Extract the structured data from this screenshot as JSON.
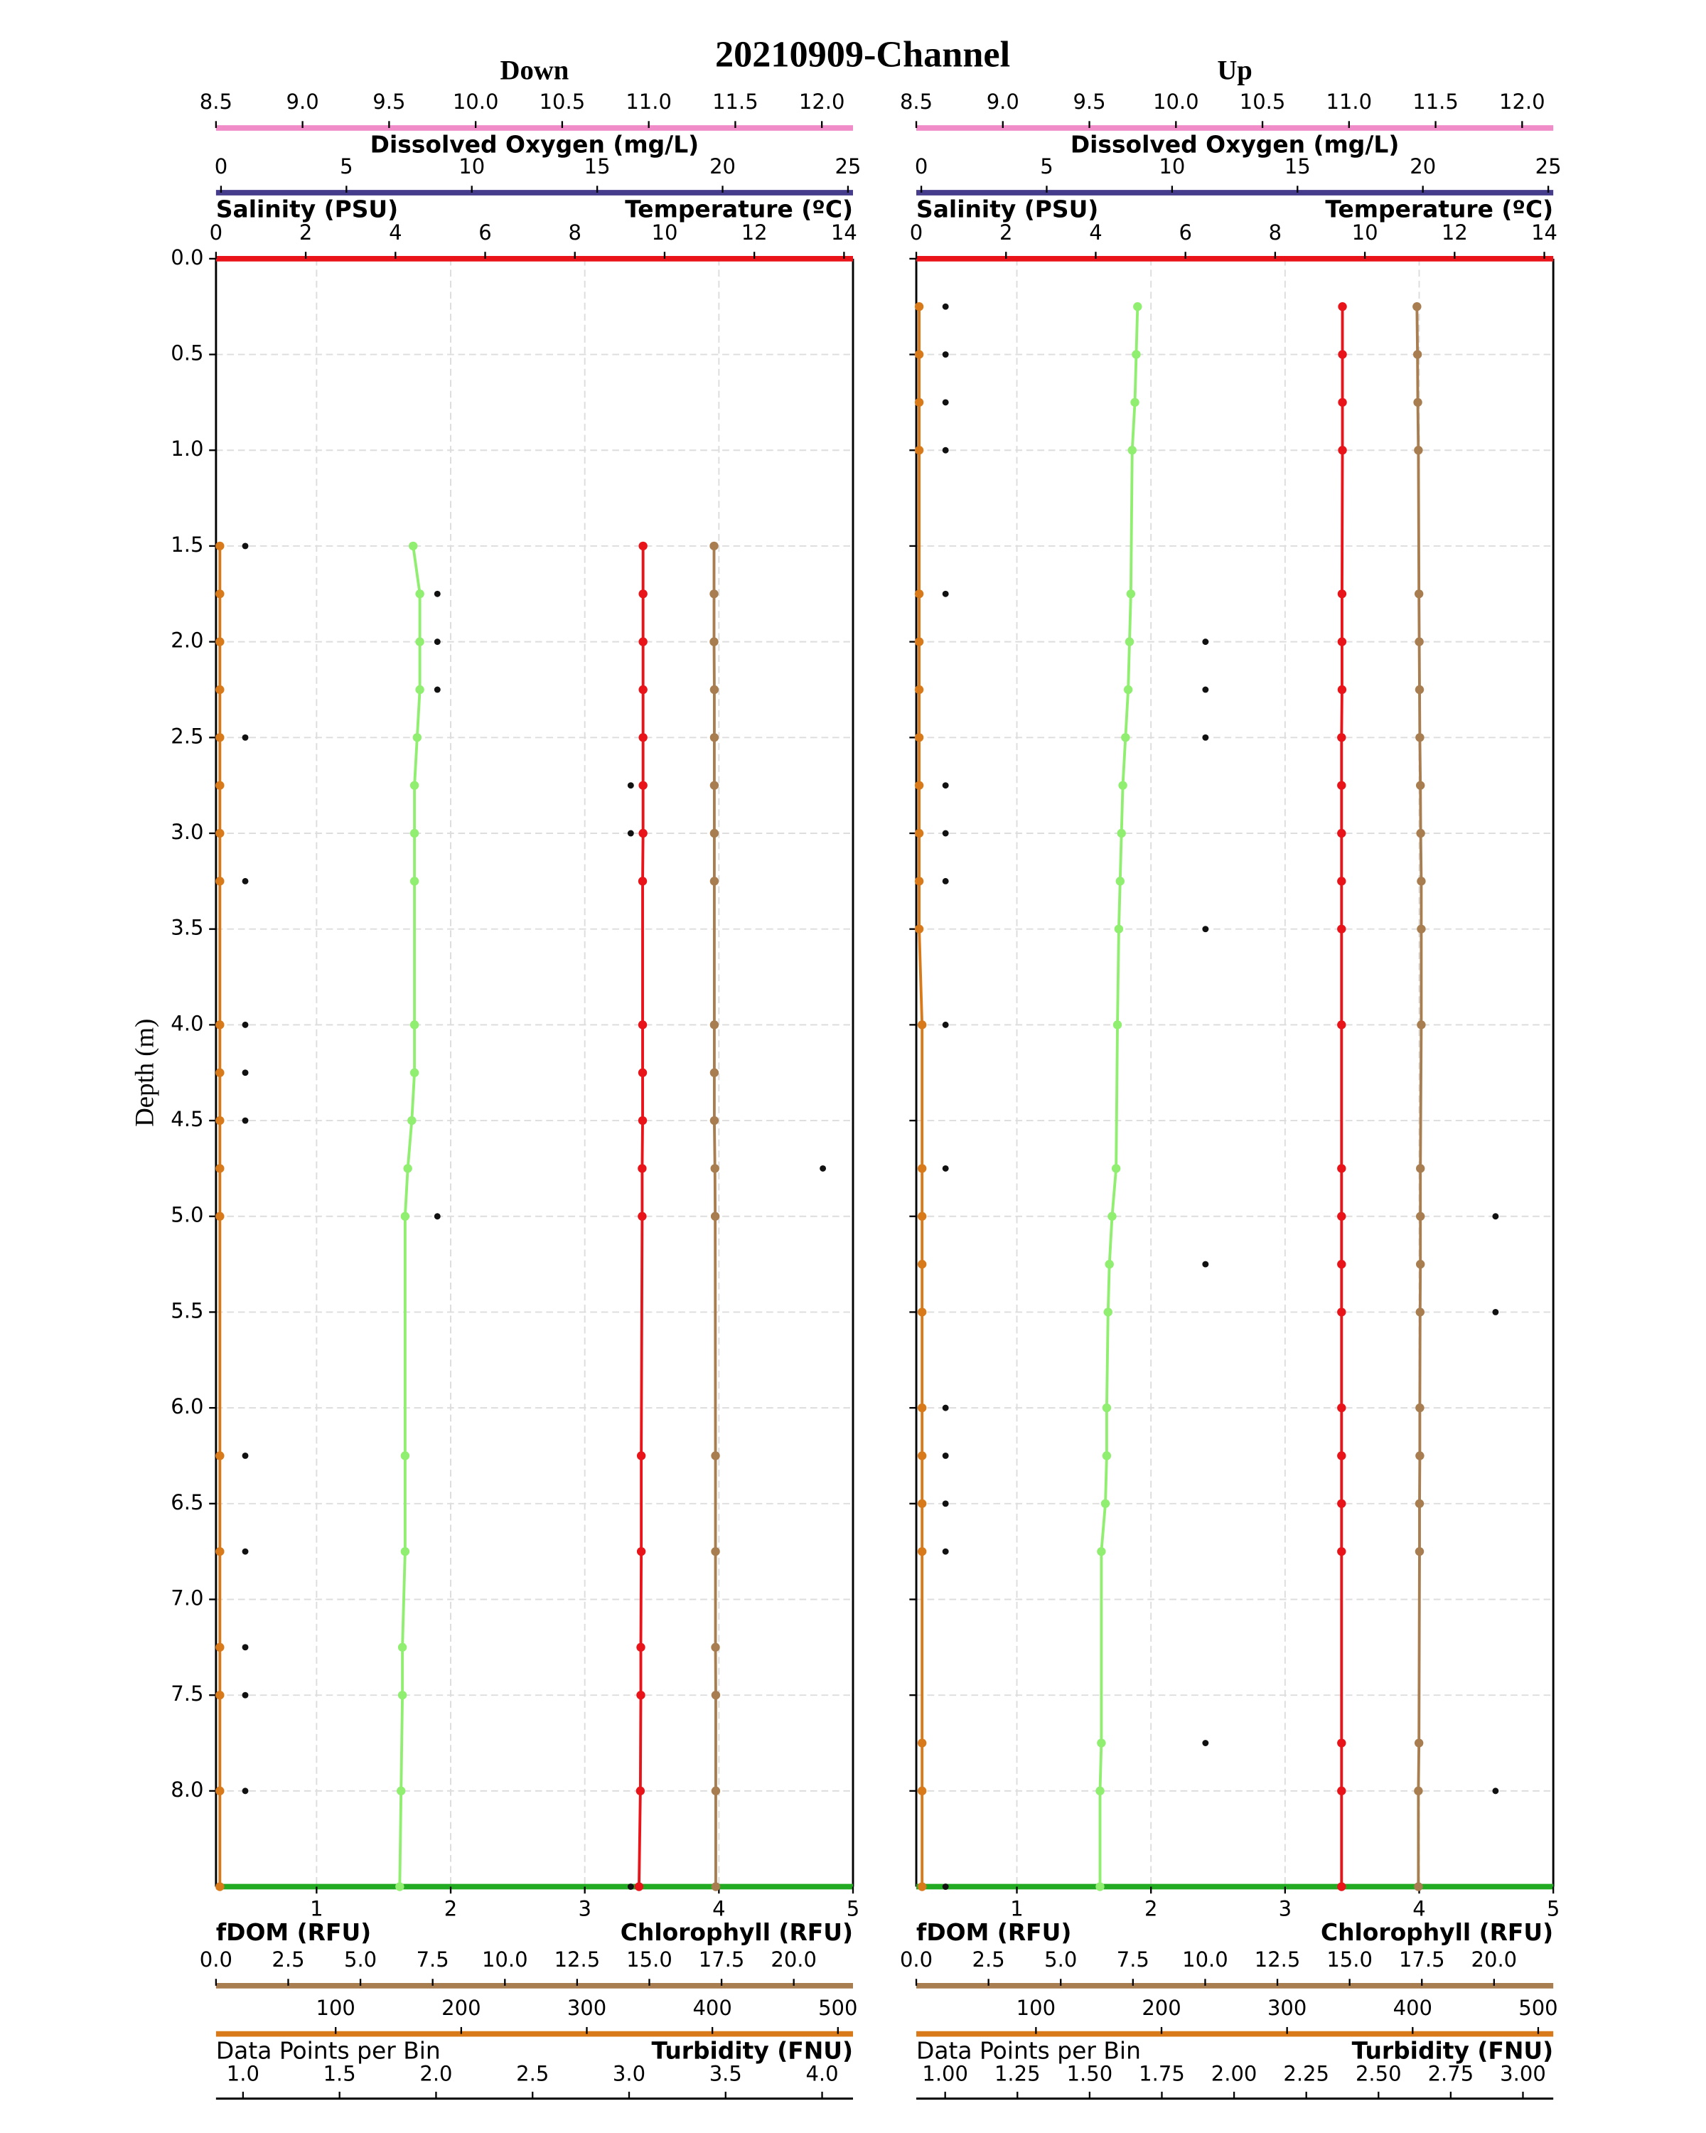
{
  "title": "20210909-Channel",
  "chart_data": [
    {
      "type": "line",
      "title": "Down",
      "ylabel": "Depth (m)",
      "ylim": [
        0,
        8.5
      ],
      "y_inverted": true,
      "show_yticklabels": true,
      "grid": true,
      "yticks": [
        {
          "value": 0,
          "label": "0.0"
        },
        0.5,
        {
          "value": 1,
          "label": "1.0"
        },
        1.5,
        {
          "value": 2,
          "label": "2.0"
        },
        2.5,
        {
          "value": 3,
          "label": "3.0"
        },
        3.5,
        {
          "value": 4,
          "label": "4.0"
        },
        4.5,
        {
          "value": 5,
          "label": "5.0"
        },
        5.5,
        {
          "value": 6,
          "label": "6.0"
        },
        6.5,
        {
          "value": 7,
          "label": "7.0"
        },
        7.5,
        {
          "value": 8,
          "label": "8.0"
        }
      ],
      "y": [
        1.5,
        1.75,
        2.0,
        2.25,
        2.5,
        2.75,
        3.0,
        3.25,
        4.0,
        4.25,
        4.5,
        4.75,
        5.0,
        6.25,
        6.75,
        7.25,
        7.5,
        8.0,
        8.5
      ],
      "axes": [
        {
          "label": "Dissolved Oxygen (mg/L)",
          "color": "#f08cc8",
          "line_color": "#f08cc8",
          "xlim": [
            8.5,
            12.18
          ],
          "xticks": [
            8.5,
            {
              "value": 9,
              "label": "9.0"
            },
            9.5,
            {
              "value": 10,
              "label": "10.0"
            },
            10.5,
            {
              "value": 11,
              "label": "11.0"
            },
            11.5,
            {
              "value": 12,
              "label": "12.0"
            }
          ]
        },
        {
          "label": "Salinity (PSU)",
          "color": "#463c8c",
          "line_color": "#463c8c",
          "xlim": [
            -0.2,
            25.2
          ],
          "xticks": [
            0,
            5,
            10,
            15,
            20,
            25
          ]
        },
        {
          "label": "Temperature (ºC)",
          "color": "#e8141a",
          "line_color": "#e8141a",
          "xlim": [
            0,
            14.2
          ],
          "xticks": [
            0,
            2,
            4,
            6,
            8,
            10,
            12,
            14
          ],
          "marker_color": "#e8141a",
          "linestyle": "-",
          "values": [
            9.52,
            9.52,
            9.52,
            9.52,
            9.52,
            9.52,
            9.52,
            9.51,
            9.51,
            9.51,
            9.51,
            9.5,
            9.5,
            9.48,
            9.48,
            9.47,
            9.47,
            9.46,
            9.43
          ]
        },
        {
          "label": "Chlorophyll (RFU)",
          "color": "#22aa22",
          "line_color": "#22aa22",
          "xlim": [
            0.25,
            5
          ],
          "xticks": [
            1,
            2,
            3,
            4,
            5
          ],
          "marker_color": "#90ee70",
          "linestyle": "-",
          "values": [
            1.72,
            1.77,
            1.77,
            1.77,
            1.75,
            1.73,
            1.73,
            1.73,
            1.73,
            1.73,
            1.71,
            1.68,
            1.66,
            1.66,
            1.66,
            1.64,
            1.64,
            1.63,
            1.62
          ]
        },
        {
          "label": "fDOM (RFU)",
          "color": "#a87d50",
          "line_color": "#a87d50",
          "xlim": [
            0,
            22.05
          ],
          "xticks": [
            {
              "value": 0,
              "label": "0.0"
            },
            2.5,
            {
              "value": 5,
              "label": "5.0"
            },
            7.5,
            {
              "value": 10,
              "label": "10.0"
            },
            12.5,
            {
              "value": 15,
              "label": "15.0"
            },
            17.5,
            {
              "value": 20,
              "label": "20.0"
            }
          ],
          "marker_color": "#a87d50",
          "linestyle": "-",
          "values": [
            17.24,
            17.24,
            17.24,
            17.25,
            17.25,
            17.25,
            17.25,
            17.25,
            17.25,
            17.25,
            17.25,
            17.27,
            17.28,
            17.29,
            17.29,
            17.29,
            17.3,
            17.3,
            17.3
          ]
        },
        {
          "label": "Data Points per Bin",
          "color": "#000000",
          "line_color": "#d97a1a",
          "xlim": [
            4.7,
            512
          ],
          "xticks": [
            100,
            200,
            300,
            400,
            500
          ],
          "marker_color": "#111111",
          "linestyle": "none",
          "values": [
            28,
            181,
            181,
            181,
            28,
            335,
            335,
            28,
            28,
            28,
            28,
            488,
            181,
            28,
            28,
            28,
            28,
            28,
            335
          ]
        },
        {
          "label": "Turbidity (FNU)",
          "color": "#d97a1a",
          "line_color": "#000000",
          "xlim": [
            0.86,
            4.16
          ],
          "xticks": [
            {
              "value": 1,
              "label": "1.0"
            },
            1.5,
            {
              "value": 2,
              "label": "2.0"
            },
            2.5,
            {
              "value": 3,
              "label": "3.0"
            },
            3.5,
            {
              "value": 4,
              "label": "4.0"
            }
          ],
          "marker_color": "#d97a1a",
          "linestyle": "-",
          "values": [
            0.88,
            0.88,
            0.88,
            0.88,
            0.88,
            0.88,
            0.88,
            0.88,
            0.88,
            0.88,
            0.88,
            0.88,
            0.88,
            0.88,
            0.88,
            0.88,
            0.88,
            0.88,
            0.88
          ]
        }
      ]
    },
    {
      "type": "line",
      "title": "Up",
      "ylim": [
        0,
        8.5
      ],
      "y_inverted": true,
      "show_yticklabels": false,
      "grid": true,
      "yticks": [
        0,
        0.5,
        1,
        1.5,
        2,
        2.5,
        3,
        3.5,
        4,
        4.5,
        5,
        5.5,
        6,
        6.5,
        7,
        7.5,
        8
      ],
      "y": [
        0.25,
        0.5,
        0.75,
        1.0,
        1.75,
        2.0,
        2.25,
        2.5,
        2.75,
        3.0,
        3.25,
        3.5,
        4.0,
        4.75,
        5.0,
        5.25,
        5.5,
        6.0,
        6.25,
        6.5,
        6.75,
        7.75,
        8.0,
        8.5
      ],
      "axes": [
        {
          "label": "Dissolved Oxygen (mg/L)",
          "color": "#f08cc8",
          "line_color": "#f08cc8",
          "xlim": [
            8.5,
            12.18
          ],
          "xticks": [
            8.5,
            {
              "value": 9,
              "label": "9.0"
            },
            9.5,
            {
              "value": 10,
              "label": "10.0"
            },
            10.5,
            {
              "value": 11,
              "label": "11.0"
            },
            11.5,
            {
              "value": 12,
              "label": "12.0"
            }
          ]
        },
        {
          "label": "Salinity (PSU)",
          "color": "#463c8c",
          "line_color": "#463c8c",
          "xlim": [
            -0.2,
            25.2
          ],
          "xticks": [
            0,
            5,
            10,
            15,
            20,
            25
          ]
        },
        {
          "label": "Temperature (ºC)",
          "color": "#e8141a",
          "line_color": "#e8141a",
          "xlim": [
            0,
            14.2
          ],
          "xticks": [
            0,
            2,
            4,
            6,
            8,
            10,
            12,
            14
          ],
          "marker_color": "#e8141a",
          "linestyle": "-",
          "values": [
            9.5,
            9.5,
            9.5,
            9.5,
            9.49,
            9.49,
            9.49,
            9.48,
            9.48,
            9.48,
            9.48,
            9.48,
            9.48,
            9.48,
            9.48,
            9.48,
            9.48,
            9.48,
            9.48,
            9.48,
            9.48,
            9.48,
            9.48,
            9.48
          ]
        },
        {
          "label": "Chlorophyll (RFU)",
          "color": "#22aa22",
          "line_color": "#22aa22",
          "xlim": [
            0.25,
            5
          ],
          "xticks": [
            1,
            2,
            3,
            4,
            5
          ],
          "marker_color": "#90ee70",
          "linestyle": "-",
          "values": [
            1.9,
            1.89,
            1.88,
            1.86,
            1.85,
            1.84,
            1.83,
            1.81,
            1.79,
            1.78,
            1.77,
            1.76,
            1.75,
            1.74,
            1.71,
            1.69,
            1.68,
            1.67,
            1.67,
            1.66,
            1.63,
            1.63,
            1.62,
            1.62
          ]
        },
        {
          "label": "fDOM (RFU)",
          "color": "#a87d50",
          "line_color": "#a87d50",
          "xlim": [
            0,
            22.05
          ],
          "xticks": [
            {
              "value": 0,
              "label": "0.0"
            },
            2.5,
            {
              "value": 5,
              "label": "5.0"
            },
            7.5,
            {
              "value": 10,
              "label": "10.0"
            },
            12.5,
            {
              "value": 15,
              "label": "15.0"
            },
            17.5,
            {
              "value": 20,
              "label": "20.0"
            }
          ],
          "marker_color": "#a87d50",
          "linestyle": "-",
          "values": [
            17.33,
            17.35,
            17.36,
            17.38,
            17.4,
            17.41,
            17.42,
            17.43,
            17.45,
            17.46,
            17.48,
            17.48,
            17.48,
            17.45,
            17.45,
            17.45,
            17.44,
            17.43,
            17.43,
            17.42,
            17.42,
            17.4,
            17.38,
            17.38
          ]
        },
        {
          "label": "Data Points per Bin",
          "color": "#000000",
          "line_color": "#d97a1a",
          "xlim": [
            4.7,
            512
          ],
          "xticks": [
            100,
            200,
            300,
            400,
            500
          ],
          "marker_color": "#111111",
          "linestyle": "none",
          "values": [
            28,
            28,
            28,
            28,
            28,
            235,
            235,
            235,
            28,
            28,
            28,
            235,
            28,
            28,
            466,
            235,
            466,
            28,
            28,
            28,
            28,
            235,
            466,
            28
          ]
        },
        {
          "label": "Turbidity (FNU)",
          "color": "#d97a1a",
          "line_color": "#000000",
          "xlim": [
            0.9,
            3.105
          ],
          "xticks": [
            {
              "value": 1,
              "label": "1.00"
            },
            1.25,
            {
              "value": 1.5,
              "label": "1.50"
            },
            1.75,
            {
              "value": 2,
              "label": "2.00"
            },
            2.25,
            {
              "value": 2.5,
              "label": "2.50"
            },
            2.75,
            {
              "value": 3,
              "label": "3.00"
            }
          ],
          "marker_color": "#d97a1a",
          "linestyle": "-",
          "values": [
            0.91,
            0.91,
            0.91,
            0.91,
            0.91,
            0.91,
            0.91,
            0.91,
            0.91,
            0.91,
            0.91,
            0.91,
            0.92,
            0.92,
            0.92,
            0.92,
            0.92,
            0.92,
            0.92,
            0.92,
            0.92,
            0.92,
            0.92,
            0.92
          ]
        }
      ]
    }
  ]
}
